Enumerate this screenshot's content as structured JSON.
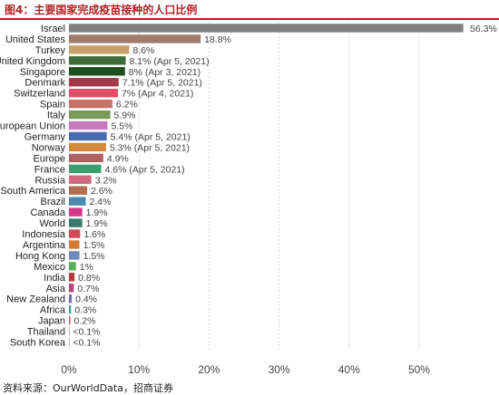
{
  "figure": {
    "title": "图4：主要国家完成疫苗接种的人口比例",
    "source": "资料来源：OurWorldData，招商证券"
  },
  "chart_data": {
    "type": "bar",
    "orientation": "horizontal",
    "categories": [
      "Israel",
      "United States",
      "Turkey",
      "United Kingdom",
      "Singapore",
      "Denmark",
      "Switzerland",
      "Spain",
      "Italy",
      "European Union",
      "Germany",
      "Norway",
      "Europe",
      "France",
      "Russia",
      "South America",
      "Brazil",
      "Canada",
      "World",
      "Indonesia",
      "Argentina",
      "Hong Kong",
      "Mexico",
      "India",
      "Asia",
      "New Zealand",
      "Africa",
      "Japan",
      "Thailand",
      "South Korea"
    ],
    "values": [
      56.3,
      18.8,
      8.6,
      8.1,
      8.0,
      7.1,
      7.0,
      6.2,
      5.9,
      5.5,
      5.4,
      5.3,
      4.9,
      4.6,
      3.2,
      2.6,
      2.4,
      1.9,
      1.9,
      1.6,
      1.5,
      1.5,
      1.0,
      0.8,
      0.7,
      0.4,
      0.3,
      0.2,
      0.05,
      0.05
    ],
    "value_labels": [
      "56.3%",
      "18.8%",
      "8.6%",
      "8.1% (Apr 5, 2021)",
      "8% (Apr 3, 2021)",
      "7.1% (Apr 5, 2021)",
      "7% (Apr 4, 2021)",
      "6.2%",
      "5.9%",
      "5.5%",
      "5.4% (Apr 5, 2021)",
      "5.3% (Apr 5, 2021)",
      "4.9%",
      "4.6% (Apr 5, 2021)",
      "3.2%",
      "2.6%",
      "2.4%",
      "1.9%",
      "1.9%",
      "1.6%",
      "1.5%",
      "1.5%",
      "1%",
      "0.8%",
      "0.7%",
      "0.4%",
      "0.3%",
      "0.2%",
      "<0.1%",
      "<0.1%"
    ],
    "colors": [
      "#7f7f7f",
      "#a07a6a",
      "#c9a06a",
      "#3d6b3a",
      "#1f4e1f",
      "#a33a4a",
      "#e0506a",
      "#c9706a",
      "#7a9a5a",
      "#c87ac0",
      "#4a6ab0",
      "#d08a3a",
      "#b06060",
      "#3aa070",
      "#d06a7a",
      "#b07050",
      "#4a8ab0",
      "#d03a8a",
      "#3a7a6a",
      "#d04a5a",
      "#d07a3a",
      "#6a8ac0",
      "#5ab05a",
      "#b04040",
      "#b04a7a",
      "#7a6ab0",
      "#4aa0a0",
      "#c06a5a",
      "#888888",
      "#888888"
    ],
    "xticks": [
      "0%",
      "10%",
      "20%",
      "30%",
      "40%",
      "50%"
    ],
    "xlim": [
      0,
      57
    ],
    "grid": true
  }
}
